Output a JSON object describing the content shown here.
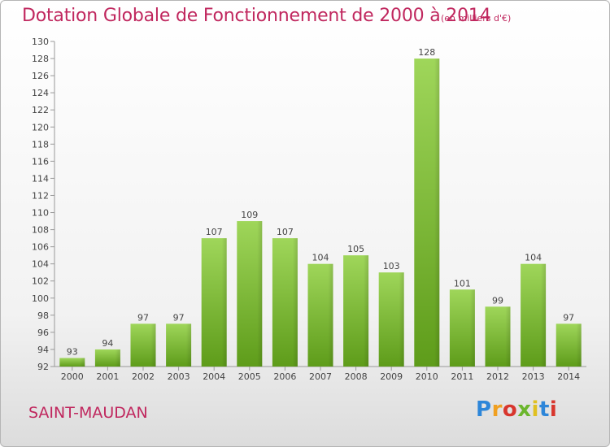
{
  "header": {
    "title": "Dotation Globale de Fonctionnement de 2000 à 2014",
    "unit_note": "(en milliers d'€)"
  },
  "footer": {
    "commune": "SAINT-MAUDAN",
    "logo_text": "Proxiti"
  },
  "colors": {
    "title": "#c0275e",
    "bar_light": "#9fd65a",
    "bar_dark": "#5e9c1a"
  },
  "chart_data": {
    "type": "bar",
    "title": "Dotation Globale de Fonctionnement de 2000 à 2014",
    "subtitle": "(en milliers d'€)",
    "categories": [
      "2000",
      "2001",
      "2002",
      "2003",
      "2004",
      "2005",
      "2006",
      "2007",
      "2008",
      "2009",
      "2010",
      "2011",
      "2012",
      "2013",
      "2014"
    ],
    "values": [
      93,
      94,
      97,
      97,
      107,
      109,
      107,
      104,
      105,
      103,
      128,
      101,
      99,
      104,
      97
    ],
    "ylim": [
      92,
      130
    ],
    "yticks": [
      92,
      94,
      96,
      98,
      100,
      102,
      104,
      106,
      108,
      110,
      112,
      114,
      116,
      118,
      120,
      122,
      124,
      126,
      128,
      130
    ],
    "xlabel": "",
    "ylabel": "",
    "grid": false,
    "data_labels": true
  }
}
